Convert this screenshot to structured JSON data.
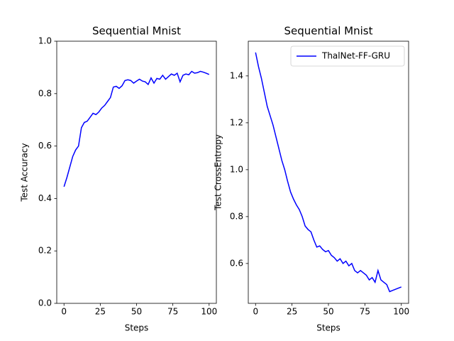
{
  "chart_data": [
    {
      "type": "line",
      "title": "Sequential Mnist",
      "xlabel": "Steps",
      "ylabel": "Test Accuracy",
      "x": [
        0,
        2,
        4,
        6,
        8,
        10,
        12,
        14,
        16,
        18,
        20,
        22,
        24,
        26,
        28,
        30,
        32,
        34,
        36,
        38,
        40,
        42,
        44,
        46,
        48,
        50,
        52,
        54,
        56,
        58,
        60,
        62,
        64,
        66,
        68,
        70,
        72,
        74,
        76,
        78,
        80,
        82,
        84,
        86,
        88,
        90,
        92,
        94,
        96,
        98,
        100
      ],
      "series": [
        {
          "color": "#0000ff",
          "values": [
            0.445,
            0.48,
            0.52,
            0.56,
            0.585,
            0.6,
            0.67,
            0.69,
            0.695,
            0.71,
            0.725,
            0.72,
            0.73,
            0.745,
            0.755,
            0.77,
            0.785,
            0.825,
            0.828,
            0.82,
            0.83,
            0.85,
            0.853,
            0.85,
            0.84,
            0.848,
            0.855,
            0.848,
            0.845,
            0.835,
            0.86,
            0.84,
            0.858,
            0.855,
            0.87,
            0.855,
            0.865,
            0.875,
            0.87,
            0.878,
            0.845,
            0.87,
            0.875,
            0.872,
            0.885,
            0.878,
            0.88,
            0.885,
            0.882,
            0.878,
            0.873
          ]
        }
      ],
      "xlim": [
        -5,
        105
      ],
      "xticks": [
        0,
        25,
        50,
        75,
        100
      ],
      "ylim": [
        0,
        1
      ],
      "yticks": [
        {
          "value": 0,
          "label": "0.0"
        },
        0.2,
        0.4,
        0.6,
        0.8,
        {
          "value": 1,
          "label": "1.0"
        }
      ]
    },
    {
      "type": "line",
      "title": "Sequential Mnist",
      "xlabel": "Steps",
      "ylabel": "Test CrossEntropy",
      "x": [
        0,
        2,
        4,
        6,
        8,
        10,
        12,
        14,
        16,
        18,
        20,
        22,
        24,
        26,
        28,
        30,
        32,
        34,
        36,
        38,
        40,
        42,
        44,
        46,
        48,
        50,
        52,
        54,
        56,
        58,
        60,
        62,
        64,
        66,
        68,
        70,
        72,
        74,
        76,
        78,
        80,
        82,
        84,
        86,
        88,
        90,
        92,
        94,
        96,
        98,
        100
      ],
      "series": [
        {
          "name": "ThalNet-FF-GRU",
          "color": "#0000ff",
          "values": [
            1.5,
            1.44,
            1.39,
            1.33,
            1.27,
            1.23,
            1.19,
            1.14,
            1.09,
            1.04,
            1.0,
            0.95,
            0.905,
            0.875,
            0.85,
            0.83,
            0.8,
            0.76,
            0.745,
            0.735,
            0.7,
            0.67,
            0.675,
            0.66,
            0.65,
            0.655,
            0.635,
            0.625,
            0.61,
            0.62,
            0.6,
            0.61,
            0.59,
            0.6,
            0.57,
            0.56,
            0.57,
            0.56,
            0.55,
            0.53,
            0.54,
            0.52,
            0.57,
            0.53,
            0.52,
            0.51,
            0.48,
            0.485,
            0.49,
            0.495,
            0.5
          ]
        }
      ],
      "xlim": [
        -5,
        105
      ],
      "xticks": [
        0,
        25,
        50,
        75,
        100
      ],
      "ylim": [
        0.43,
        1.548
      ],
      "yticks": [
        0.6,
        0.8,
        {
          "value": 1,
          "label": "1.0"
        },
        1.2,
        1.4
      ],
      "legend": "upper right"
    }
  ]
}
